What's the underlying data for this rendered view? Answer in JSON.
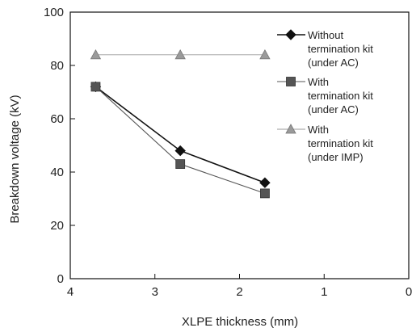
{
  "chart_data": {
    "type": "line",
    "xlabel": "XLPE thickness (mm)",
    "ylabel": "Breakdown voltage (kV)",
    "xlim": [
      4,
      0
    ],
    "ylim": [
      0,
      100
    ],
    "x_ticks": [
      4,
      3,
      2,
      1,
      0
    ],
    "y_ticks": [
      0,
      20,
      40,
      60,
      80,
      100
    ],
    "x_reversed": true,
    "grid": false,
    "legend_position": "top-right, inside plot",
    "series": [
      {
        "name": "Without termination kit (under AC)",
        "legend_lines": [
          "Without",
          "termination kit",
          "(under AC)"
        ],
        "marker": "diamond",
        "color": "#111111",
        "x": [
          3.7,
          2.7,
          1.7
        ],
        "y": [
          72,
          48,
          36
        ]
      },
      {
        "name": "With termination kit (under AC)",
        "legend_lines": [
          "With",
          "termination kit",
          "(under AC)"
        ],
        "marker": "square",
        "color": "#555555",
        "x": [
          3.7,
          2.7,
          1.7
        ],
        "y": [
          72,
          43,
          32
        ]
      },
      {
        "name": "With termination kit (under IMP)",
        "legend_lines": [
          "With",
          "termination kit",
          "(under IMP)"
        ],
        "marker": "triangle",
        "color": "#9a9a9a",
        "x": [
          3.7,
          2.7,
          1.7
        ],
        "y": [
          84,
          84,
          84
        ]
      }
    ]
  }
}
